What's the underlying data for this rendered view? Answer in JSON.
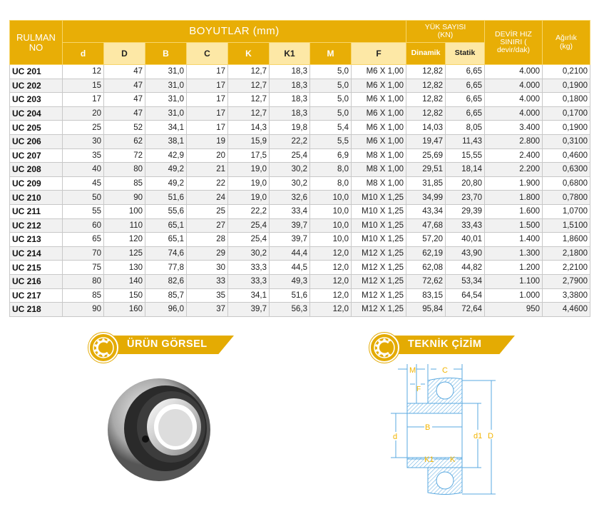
{
  "table": {
    "header": {
      "rulman": "RULMAN NO",
      "boyutlar": "BOYUTLAR (mm)",
      "yuk": "YÜK SAYISI (KN)",
      "devir": "DEVİR HIZ SINIRI ( devir/dak)",
      "agirlik": "Ağırlık (kg)",
      "cols": [
        "d",
        "D",
        "B",
        "C",
        "K",
        "K1",
        "M",
        "F"
      ],
      "dinamik": "Dinamik",
      "statik": "Statik"
    },
    "rows": [
      [
        "UC 201",
        "12",
        "47",
        "31,0",
        "17",
        "12,7",
        "18,3",
        "5,0",
        "M6 X 1,00",
        "12,82",
        "6,65",
        "4.000",
        "0,2100"
      ],
      [
        "UC 202",
        "15",
        "47",
        "31,0",
        "17",
        "12,7",
        "18,3",
        "5,0",
        "M6 X 1,00",
        "12,82",
        "6,65",
        "4.000",
        "0,1900"
      ],
      [
        "UC 203",
        "17",
        "47",
        "31,0",
        "17",
        "12,7",
        "18,3",
        "5,0",
        "M6 X 1,00",
        "12,82",
        "6,65",
        "4.000",
        "0,1800"
      ],
      [
        "UC 204",
        "20",
        "47",
        "31,0",
        "17",
        "12,7",
        "18,3",
        "5,0",
        "M6 X 1,00",
        "12,82",
        "6,65",
        "4.000",
        "0,1700"
      ],
      [
        "UC 205",
        "25",
        "52",
        "34,1",
        "17",
        "14,3",
        "19,8",
        "5,4",
        "M6 X 1,00",
        "14,03",
        "8,05",
        "3.400",
        "0,1900"
      ],
      [
        "UC 206",
        "30",
        "62",
        "38,1",
        "19",
        "15,9",
        "22,2",
        "5,5",
        "M6 X 1,00",
        "19,47",
        "11,43",
        "2.800",
        "0,3100"
      ],
      [
        "UC 207",
        "35",
        "72",
        "42,9",
        "20",
        "17,5",
        "25,4",
        "6,9",
        "M8 X 1,00",
        "25,69",
        "15,55",
        "2.400",
        "0,4600"
      ],
      [
        "UC 208",
        "40",
        "80",
        "49,2",
        "21",
        "19,0",
        "30,2",
        "8,0",
        "M8 X 1,00",
        "29,51",
        "18,14",
        "2.200",
        "0,6300"
      ],
      [
        "UC 209",
        "45",
        "85",
        "49,2",
        "22",
        "19,0",
        "30,2",
        "8,0",
        "M8 X 1,00",
        "31,85",
        "20,80",
        "1.900",
        "0,6800"
      ],
      [
        "UC 210",
        "50",
        "90",
        "51,6",
        "24",
        "19,0",
        "32,6",
        "10,0",
        "M10 X 1,25",
        "34,99",
        "23,70",
        "1.800",
        "0,7800"
      ],
      [
        "UC 211",
        "55",
        "100",
        "55,6",
        "25",
        "22,2",
        "33,4",
        "10,0",
        "M10 X 1,25",
        "43,34",
        "29,39",
        "1.600",
        "1,0700"
      ],
      [
        "UC 212",
        "60",
        "110",
        "65,1",
        "27",
        "25,4",
        "39,7",
        "10,0",
        "M10 X 1,25",
        "47,68",
        "33,43",
        "1.500",
        "1,5100"
      ],
      [
        "UC 213",
        "65",
        "120",
        "65,1",
        "28",
        "25,4",
        "39,7",
        "10,0",
        "M10 X 1,25",
        "57,20",
        "40,01",
        "1.400",
        "1,8600"
      ],
      [
        "UC 214",
        "70",
        "125",
        "74,6",
        "29",
        "30,2",
        "44,4",
        "12,0",
        "M12 X 1,25",
        "62,19",
        "43,90",
        "1.300",
        "2,1800"
      ],
      [
        "UC 215",
        "75",
        "130",
        "77,8",
        "30",
        "33,3",
        "44,5",
        "12,0",
        "M12 X 1,25",
        "62,08",
        "44,82",
        "1.200",
        "2,2100"
      ],
      [
        "UC 216",
        "80",
        "140",
        "82,6",
        "33",
        "33,3",
        "49,3",
        "12,0",
        "M12 X 1,25",
        "72,62",
        "53,34",
        "1.100",
        "2,7900"
      ],
      [
        "UC 217",
        "85",
        "150",
        "85,7",
        "35",
        "34,1",
        "51,6",
        "12,0",
        "M12 X 1,25",
        "83,15",
        "64,54",
        "1.000",
        "3,3800"
      ],
      [
        "UC 218",
        "90",
        "160",
        "96,0",
        "37",
        "39,7",
        "56,3",
        "12,0",
        "M12 X 1,25",
        "95,84",
        "72,64",
        "950",
        "4,4600"
      ]
    ]
  },
  "sections": {
    "product": "ÜRÜN GÖRSEL",
    "technical": "TEKNİK ÇİZİM"
  },
  "drawing": {
    "labels": {
      "M": "M",
      "C": "C",
      "F": "F",
      "B": "B",
      "d": "d",
      "d1": "d1",
      "D": "D",
      "K1": "K1",
      "K": "K"
    }
  },
  "colors": {
    "accent": "#e8ae06",
    "light": "#fde8a6",
    "line": "#5aa9e0",
    "label": "#f2b400"
  }
}
